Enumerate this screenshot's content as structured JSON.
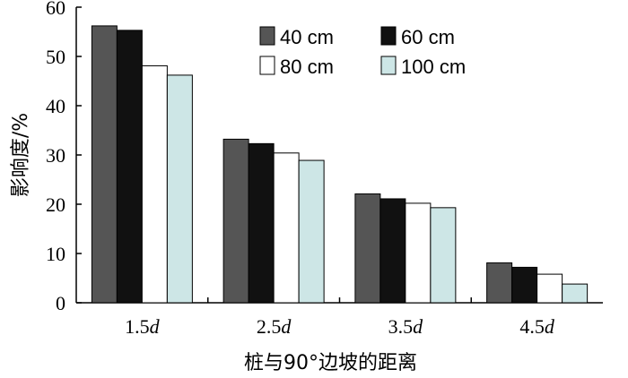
{
  "chart_data": {
    "type": "bar",
    "title": "",
    "xlabel": "桩与90°边坡的距离",
    "ylabel": "影响度/%",
    "ylim": [
      0,
      60
    ],
    "yticks": [
      0,
      10,
      20,
      30,
      40,
      50,
      60
    ],
    "categories": [
      {
        "num": "1.5",
        "unit": "d"
      },
      {
        "num": "2.5",
        "unit": "d"
      },
      {
        "num": "3.5",
        "unit": "d"
      },
      {
        "num": "4.5",
        "unit": "d"
      }
    ],
    "series": [
      {
        "name": "40 cm",
        "color": "#555555",
        "values": [
          56.2,
          33.2,
          22.1,
          8.1
        ]
      },
      {
        "name": "60 cm",
        "color": "#111111",
        "values": [
          55.3,
          32.3,
          21.1,
          7.2
        ]
      },
      {
        "name": "80 cm",
        "color": "#ffffff",
        "values": [
          48.1,
          30.4,
          20.2,
          5.8
        ]
      },
      {
        "name": "100 cm",
        "color": "#cde6e6",
        "values": [
          46.2,
          28.9,
          19.3,
          3.8
        ]
      }
    ],
    "legend_position": "top-right",
    "grid": false
  }
}
